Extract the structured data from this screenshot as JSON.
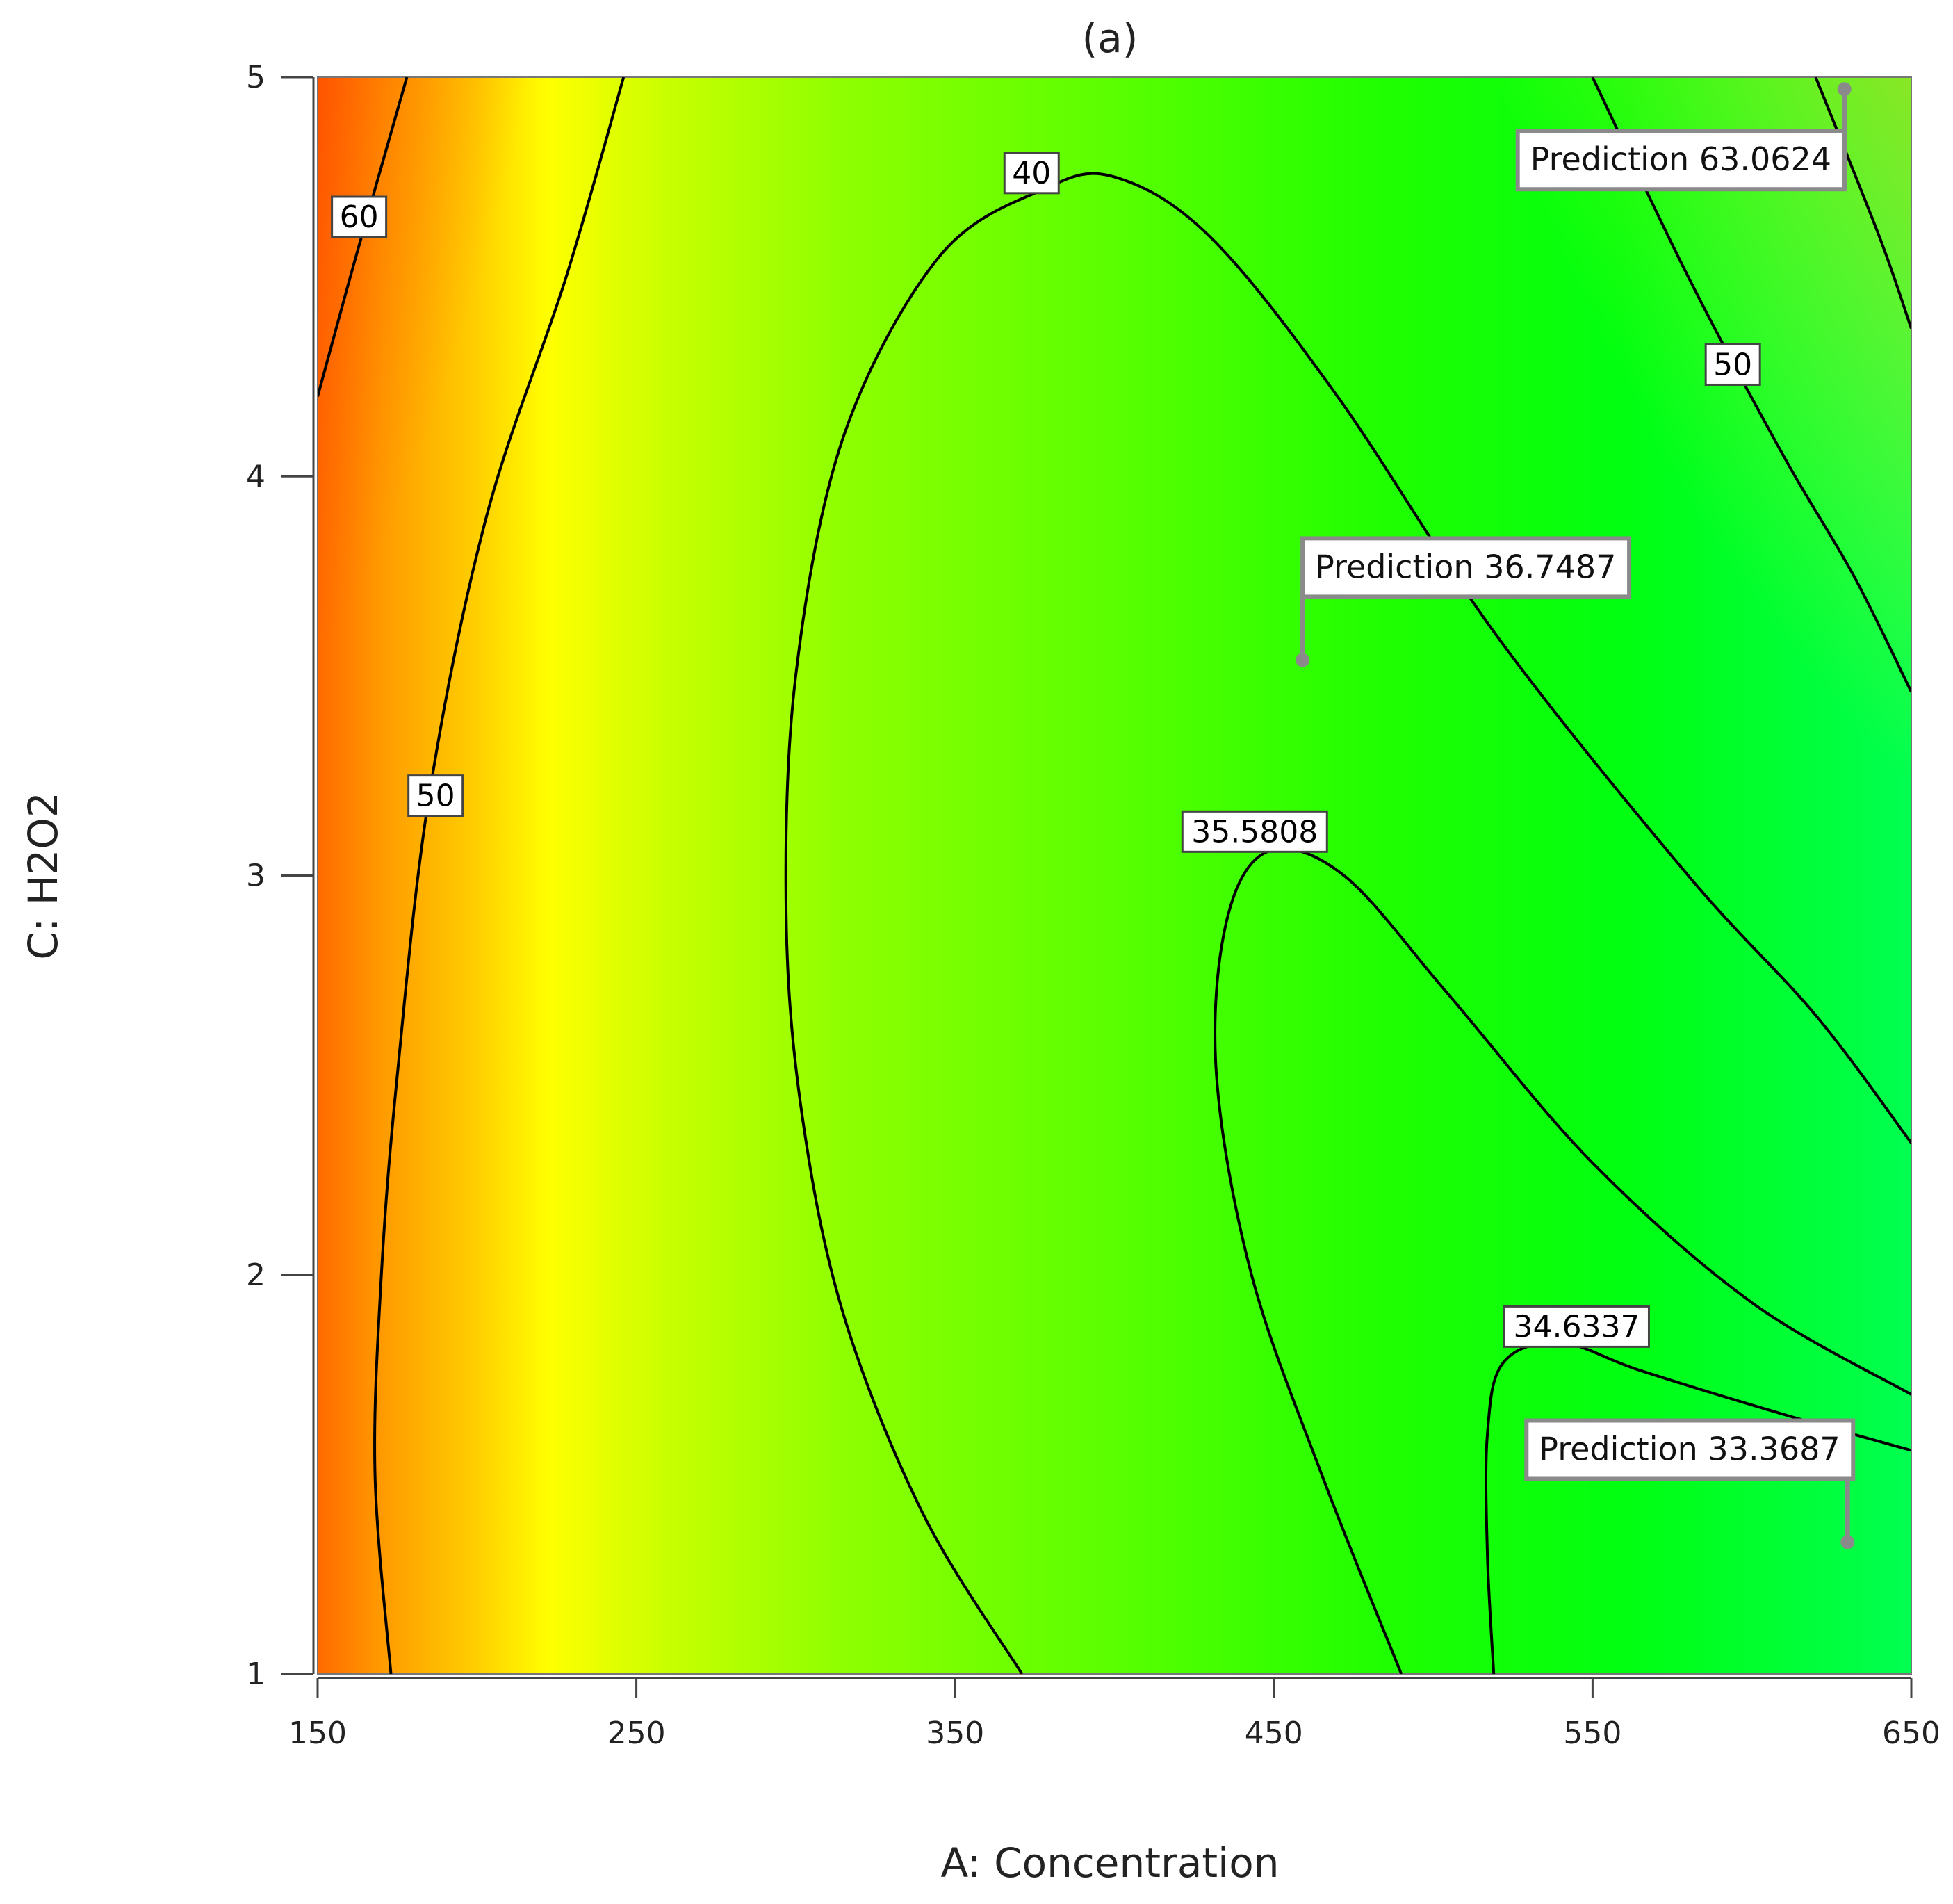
{
  "chart_data": {
    "type": "heatmap",
    "subtype": "response-surface contour plot",
    "title": "(a)",
    "xlabel": "A: Concentration",
    "ylabel": "C: H2O2",
    "xlim": [
      150,
      650
    ],
    "ylim": [
      1,
      5
    ],
    "x_ticks": [
      "150",
      "250",
      "350",
      "450",
      "550",
      "650"
    ],
    "y_ticks": [
      "1",
      "2",
      "3",
      "4",
      "5"
    ],
    "color_scale": [
      "#00ff60",
      "#00ff00",
      "#7fff00",
      "#ffff00",
      "#ff8c00",
      "#ff0000"
    ],
    "contour_levels": [
      {
        "label": "60",
        "x": 163,
        "y": 4.65
      },
      {
        "label": "50",
        "x": 187,
        "y": 3.2
      },
      {
        "label": "40",
        "x": 374,
        "y": 4.76
      },
      {
        "label": "35.5808",
        "x": 444,
        "y": 3.11
      },
      {
        "label": "34.6337",
        "x": 545,
        "y": 1.87
      },
      {
        "label": "50",
        "x": 594,
        "y": 4.28
      }
    ],
    "contours": [
      {
        "level": "60",
        "points": [
          [
            150,
            4.2
          ],
          [
            162,
            4.55
          ],
          [
            178,
            5.0
          ]
        ]
      },
      {
        "level": "50",
        "points": [
          [
            173,
            1.0
          ],
          [
            168,
            1.5
          ],
          [
            170,
            2.0
          ],
          [
            175,
            2.5
          ],
          [
            185,
            3.2
          ],
          [
            203,
            3.9
          ],
          [
            228,
            4.5
          ],
          [
            246,
            5.0
          ]
        ]
      },
      {
        "level": "40",
        "points": [
          [
            371,
            1.0
          ],
          [
            340,
            1.4
          ],
          [
            315,
            1.9
          ],
          [
            302,
            2.4
          ],
          [
            297,
            2.9
          ],
          [
            300,
            3.5
          ],
          [
            315,
            4.1
          ],
          [
            345,
            4.55
          ],
          [
            378,
            4.72
          ],
          [
            400,
            4.75
          ],
          [
            430,
            4.6
          ],
          [
            470,
            4.2
          ],
          [
            520,
            3.6
          ],
          [
            580,
            3.0
          ],
          [
            620,
            2.65
          ],
          [
            650,
            2.33
          ]
        ]
      },
      {
        "level": "35.5808",
        "points": [
          [
            490,
            1.0
          ],
          [
            465,
            1.5
          ],
          [
            443,
            2.0
          ],
          [
            432,
            2.5
          ],
          [
            435,
            2.88
          ],
          [
            448,
            3.06
          ],
          [
            472,
            3.0
          ],
          [
            505,
            2.7
          ],
          [
            550,
            2.28
          ],
          [
            600,
            1.93
          ],
          [
            650,
            1.7
          ]
        ]
      },
      {
        "level": "34.6337",
        "points": [
          [
            519,
            1.0
          ],
          [
            517,
            1.3
          ],
          [
            517,
            1.6
          ],
          [
            522,
            1.78
          ],
          [
            540,
            1.83
          ],
          [
            565,
            1.76
          ],
          [
            610,
            1.65
          ],
          [
            650,
            1.56
          ]
        ]
      },
      {
        "level": "50",
        "points": [
          [
            550,
            5.0
          ],
          [
            580,
            4.5
          ],
          [
            610,
            4.05
          ],
          [
            632,
            3.75
          ],
          [
            650,
            3.46
          ]
        ]
      },
      {
        "level": "60",
        "points": [
          [
            620,
            5.0
          ],
          [
            640,
            4.6
          ],
          [
            650,
            4.37
          ]
        ]
      }
    ],
    "predictions": [
      {
        "label": "Prediction",
        "value": "63.0624",
        "x": 629,
        "y": 4.97
      },
      {
        "label": "Prediction",
        "value": "36.7487",
        "x": 459,
        "y": 3.54
      },
      {
        "label": "Prediction",
        "value": "33.3687",
        "x": 630,
        "y": 1.33
      }
    ],
    "grid": false,
    "legend": "none"
  }
}
